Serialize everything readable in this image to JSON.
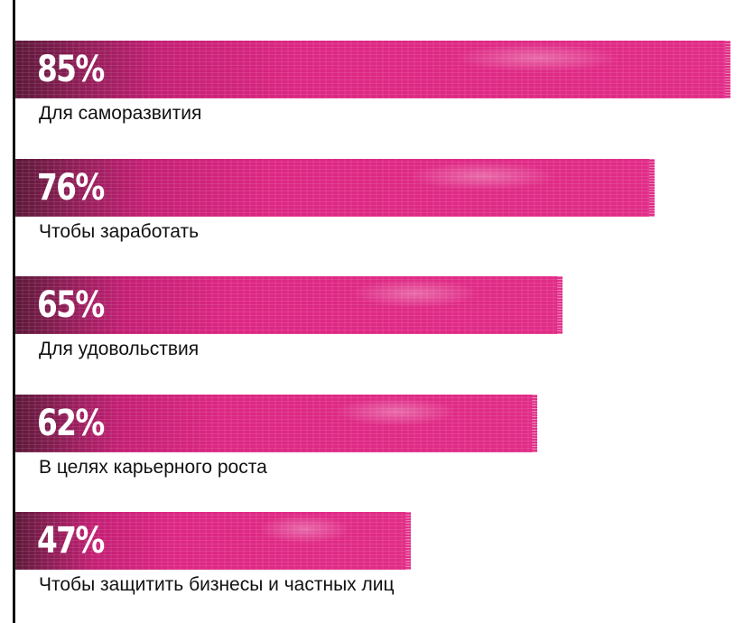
{
  "chart_data": {
    "type": "bar",
    "orientation": "horizontal",
    "categories": [
      "Для саморазвития",
      "Чтобы заработать",
      "Для удовольствия",
      "В целях карьерного роста",
      "Чтобы защитить бизнесы и частных лиц"
    ],
    "values": [
      85,
      76,
      65,
      62,
      47
    ],
    "value_labels": [
      "85%",
      "76%",
      "65%",
      "62%",
      "47%"
    ],
    "unit": "%",
    "xlim": [
      0,
      100
    ],
    "bar_color": "#e02a86",
    "bar_dark_color": "#5c1838"
  }
}
